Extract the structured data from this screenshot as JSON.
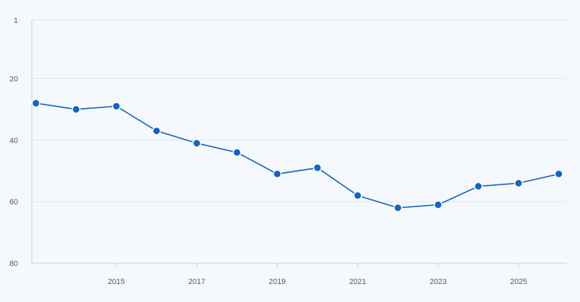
{
  "chart_data": {
    "type": "line",
    "title": "",
    "xlabel": "",
    "ylabel": "",
    "y_inverted": true,
    "ylim": [
      1,
      80
    ],
    "yticks": [
      1,
      20,
      40,
      60,
      80
    ],
    "xlim": [
      2012.9,
      2026.2
    ],
    "xticks": [
      2015,
      2017,
      2019,
      2021,
      2023,
      2025
    ],
    "grid": {
      "horizontal": true,
      "vertical": false
    },
    "colors": {
      "line": "#1a6bbf",
      "marker": "#1565c0",
      "marker_stroke": "#ffffff",
      "background": "#f5f9fd"
    },
    "series": [
      {
        "x": [
          2013,
          2014,
          2015,
          2016,
          2017,
          2018,
          2019,
          2020,
          2021,
          2022,
          2023,
          2024,
          2025,
          2026
        ],
        "values": [
          28,
          30,
          29,
          37,
          41,
          44,
          51,
          49,
          58,
          62,
          61,
          55,
          54,
          51
        ]
      }
    ]
  }
}
